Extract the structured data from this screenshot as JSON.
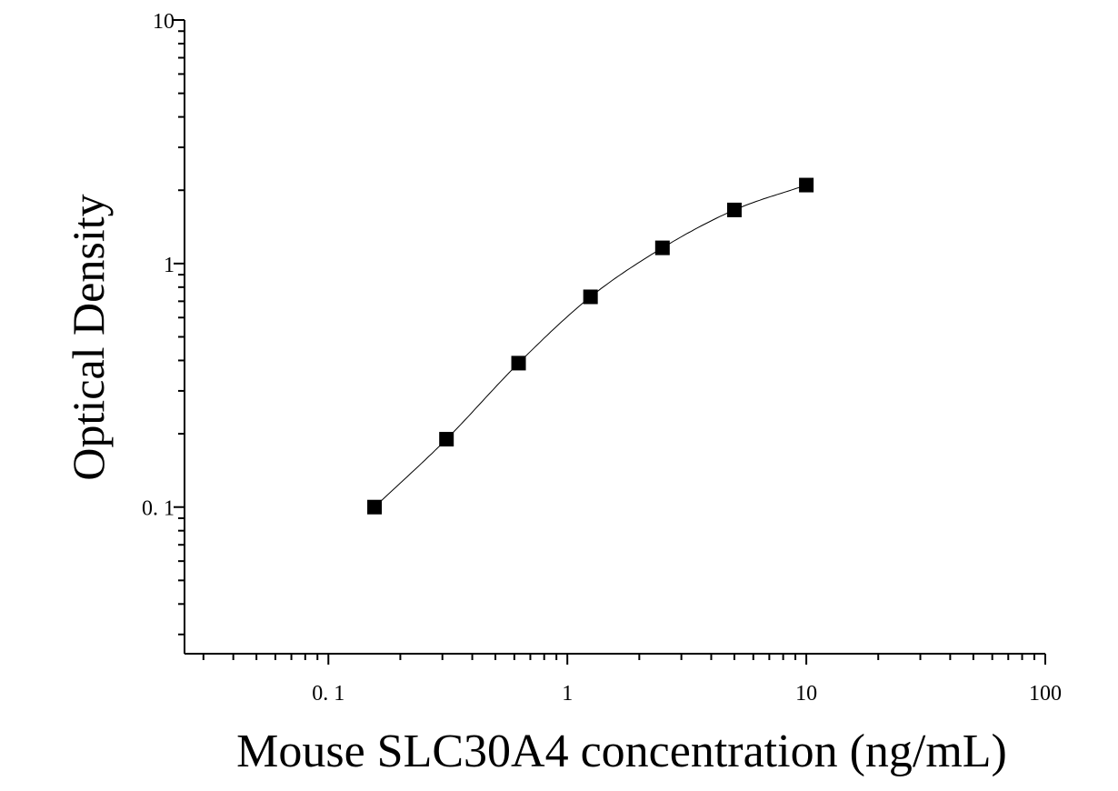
{
  "chart_data": {
    "type": "scatter",
    "xlabel": "Mouse SLC30A4 concentration (ng/mL)",
    "ylabel": "Optical Density",
    "x_scale": "log",
    "y_scale": "log",
    "xlim": [
      0.025,
      100
    ],
    "ylim": [
      0.025,
      10
    ],
    "x_ticks": [
      {
        "value": 0.1,
        "label": "0. 1"
      },
      {
        "value": 1,
        "label": "1"
      },
      {
        "value": 10,
        "label": "10"
      },
      {
        "value": 100,
        "label": "100"
      }
    ],
    "y_ticks": [
      {
        "value": 0.1,
        "label": "0. 1"
      },
      {
        "value": 1,
        "label": "1"
      },
      {
        "value": 10,
        "label": "10"
      }
    ],
    "grid": false,
    "marker_color": "#000000",
    "series": [
      {
        "x": [
          0.156,
          0.312,
          0.625,
          1.25,
          2.5,
          5,
          10
        ],
        "y": [
          0.1,
          0.19,
          0.39,
          0.73,
          1.16,
          1.66,
          2.1
        ]
      }
    ],
    "fit_curve": true
  }
}
